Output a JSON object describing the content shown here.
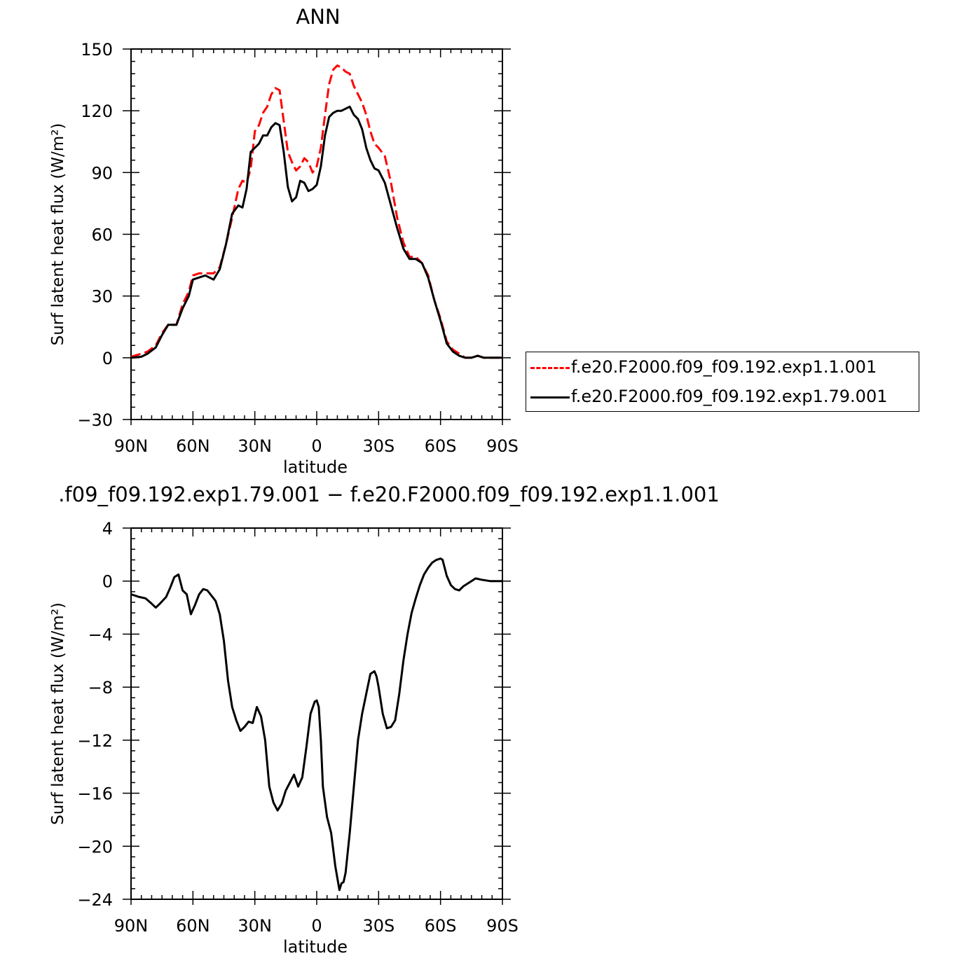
{
  "chart_data": [
    {
      "type": "line",
      "title": "ANN",
      "xlabel": "latitude",
      "ylabel": "Surf latent heat flux (W/m²)",
      "xlim": [
        -90,
        90
      ],
      "ylim": [
        -30,
        150
      ],
      "xticks": [
        {
          "value": -90,
          "label": "90N"
        },
        {
          "value": -60,
          "label": "60N"
        },
        {
          "value": -30,
          "label": "30N"
        },
        {
          "value": 0,
          "label": "0"
        },
        {
          "value": 30,
          "label": "30S"
        },
        {
          "value": 60,
          "label": "60S"
        },
        {
          "value": 90,
          "label": "90S"
        }
      ],
      "yticks": [
        -30,
        0,
        30,
        60,
        90,
        120,
        150
      ],
      "legend_position": "right",
      "series": [
        {
          "name": "f.e20.F2000.f09_f09.192.exp1.1.001",
          "color": "#ff0000",
          "dash": "dashed",
          "x": [
            -90,
            -85,
            -82,
            -78,
            -75,
            -72,
            -68,
            -65,
            -62,
            -60,
            -57,
            -54,
            -50,
            -47,
            -44,
            -41,
            -38,
            -36,
            -34,
            -32,
            -30,
            -28,
            -26,
            -24,
            -22,
            -20,
            -18,
            -16,
            -14,
            -12,
            -10,
            -8,
            -6,
            -4,
            -2,
            0,
            2,
            4,
            6,
            8,
            10,
            12,
            14,
            16,
            18,
            20,
            22,
            24,
            26,
            28,
            30,
            33,
            36,
            39,
            42,
            45,
            48,
            51,
            54,
            57,
            60,
            63,
            66,
            69,
            72,
            75,
            78,
            81,
            84,
            87,
            90
          ],
          "y": [
            0.5,
            2,
            3,
            6,
            12,
            16,
            16,
            26,
            32,
            40,
            41,
            41,
            41,
            44,
            55,
            68,
            82,
            86,
            85,
            92,
            110,
            113,
            119,
            122,
            128,
            131,
            130,
            115,
            100,
            95,
            91,
            93,
            97,
            95,
            90,
            93,
            102,
            118,
            133,
            140,
            142,
            141,
            139,
            138,
            132,
            128,
            124,
            118,
            110,
            104,
            102,
            98,
            85,
            68,
            56,
            49,
            49,
            46,
            40,
            28,
            19,
            8,
            4,
            2,
            0,
            0,
            1,
            0,
            0,
            0,
            0
          ]
        },
        {
          "name": "f.e20.F2000.f09_f09.192.exp1.79.001",
          "color": "#000000",
          "dash": "solid",
          "x": [
            -90,
            -85,
            -82,
            -78,
            -75,
            -72,
            -68,
            -65,
            -62,
            -60,
            -57,
            -54,
            -50,
            -47,
            -44,
            -41,
            -38,
            -36,
            -34,
            -32,
            -30,
            -28,
            -26,
            -24,
            -22,
            -20,
            -18,
            -16,
            -14,
            -12,
            -10,
            -8,
            -6,
            -4,
            -2,
            0,
            2,
            4,
            6,
            8,
            10,
            12,
            14,
            16,
            18,
            20,
            22,
            24,
            26,
            28,
            30,
            33,
            36,
            39,
            42,
            45,
            48,
            51,
            54,
            57,
            60,
            63,
            66,
            69,
            72,
            75,
            78,
            81,
            84,
            87,
            90
          ],
          "y": [
            0,
            0.5,
            2,
            5,
            11,
            16,
            16,
            24,
            30,
            38,
            39,
            40,
            38,
            43,
            55,
            70,
            74,
            73,
            82,
            100,
            102,
            104,
            108,
            108,
            112,
            114,
            113,
            100,
            83,
            76,
            78,
            86,
            85,
            81,
            82,
            84,
            93,
            108,
            117,
            119,
            120,
            120,
            121,
            122,
            118,
            116,
            111,
            102,
            96,
            92,
            91,
            85,
            74,
            63,
            53,
            48,
            48,
            46,
            39,
            28,
            18,
            7,
            3,
            1,
            0,
            0,
            1,
            0,
            0,
            0,
            0
          ]
        }
      ]
    },
    {
      "type": "line",
      "title": ".f09_f09.192.exp1.79.001  −  f.e20.F2000.f09_f09.192.exp1.1.001",
      "xlabel": "latitude",
      "ylabel": "Surf latent heat flux (W/m²)",
      "xlim": [
        -90,
        90
      ],
      "ylim": [
        -24,
        4
      ],
      "xticks": [
        {
          "value": -90,
          "label": "90N"
        },
        {
          "value": -60,
          "label": "60N"
        },
        {
          "value": -30,
          "label": "30N"
        },
        {
          "value": 0,
          "label": "0"
        },
        {
          "value": 30,
          "label": "30S"
        },
        {
          "value": 60,
          "label": "60S"
        },
        {
          "value": 90,
          "label": "90S"
        }
      ],
      "yticks": [
        -24,
        -20,
        -16,
        -12,
        -8,
        -4,
        0,
        4
      ],
      "series": [
        {
          "color": "#000000",
          "dash": "solid",
          "x": [
            -90,
            -86,
            -83,
            -80,
            -78,
            -76,
            -73,
            -71,
            -69,
            -67,
            -65,
            -63,
            -61,
            -59,
            -57,
            -55,
            -53,
            -51,
            -49,
            -47,
            -45,
            -43,
            -41,
            -39,
            -37,
            -35,
            -33,
            -31,
            -29,
            -27,
            -25,
            -23,
            -21,
            -19,
            -17,
            -15,
            -13,
            -11,
            -9,
            -7,
            -5,
            -3,
            -1,
            0,
            1,
            2,
            3,
            5,
            7,
            9,
            11,
            12,
            13,
            14,
            16,
            18,
            20,
            22,
            24,
            26,
            28,
            29,
            30,
            32,
            34,
            36,
            38,
            40,
            42,
            44,
            46,
            48,
            50,
            52,
            54,
            56,
            58,
            60,
            61,
            62,
            63,
            65,
            67,
            69,
            71,
            73,
            75,
            77,
            80,
            84,
            88,
            90
          ],
          "y": [
            -1,
            -1.2,
            -1.3,
            -1.7,
            -2,
            -1.7,
            -1.2,
            -0.5,
            0.3,
            0.5,
            -0.7,
            -1,
            -2.5,
            -1.8,
            -1,
            -0.6,
            -0.7,
            -1.1,
            -1.5,
            -2.5,
            -4.5,
            -7.5,
            -9.5,
            -10.5,
            -11.3,
            -11,
            -10.6,
            -10.7,
            -9.5,
            -10.2,
            -12,
            -15.5,
            -16.7,
            -17.3,
            -16.8,
            -15.8,
            -15.2,
            -14.6,
            -15.5,
            -14.8,
            -12.5,
            -10,
            -9.1,
            -9,
            -9.5,
            -12,
            -15.5,
            -17.8,
            -19,
            -21.5,
            -23.3,
            -22.8,
            -22.7,
            -22,
            -19,
            -15.5,
            -12,
            -10,
            -8.5,
            -7,
            -6.8,
            -7.2,
            -8,
            -10,
            -11.1,
            -11,
            -10.5,
            -8.5,
            -6,
            -4,
            -2.4,
            -1.3,
            -0.3,
            0.5,
            1,
            1.4,
            1.6,
            1.7,
            1.6,
            1,
            0.4,
            -0.3,
            -0.6,
            -0.7,
            -0.4,
            -0.2,
            0,
            0.2,
            0.1,
            0,
            0,
            0
          ]
        }
      ]
    }
  ]
}
